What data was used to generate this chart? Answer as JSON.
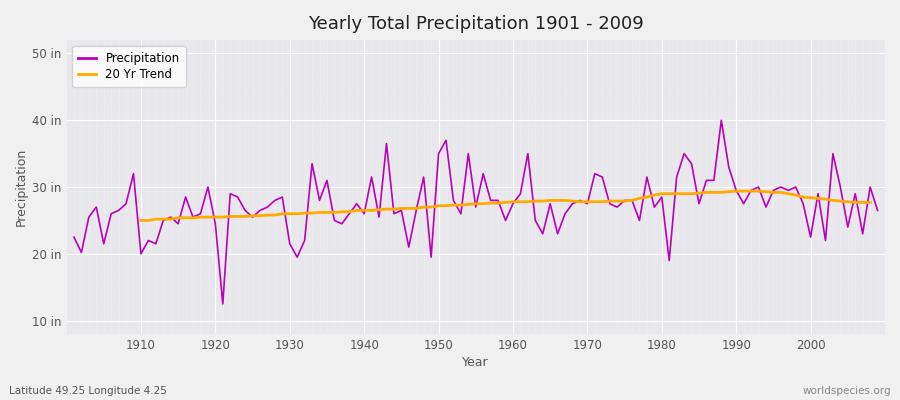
{
  "title": "Yearly Total Precipitation 1901 - 2009",
  "xlabel": "Year",
  "ylabel": "Precipitation",
  "subtitle": "Latitude 49.25 Longitude 4.25",
  "watermark": "worldspecies.org",
  "ylim": [
    8,
    52
  ],
  "yticks": [
    10,
    20,
    30,
    40,
    50
  ],
  "ytick_labels": [
    "10 in",
    "20 in",
    "30 in",
    "40 in",
    "50 in"
  ],
  "xlim": [
    1900,
    2010
  ],
  "fig_bg_color": "#f0f0f0",
  "plot_bg_color": "#e8e8ec",
  "precip_color": "#bb00bb",
  "trend_color": "#ffaa00",
  "legend_entries": [
    "Precipitation",
    "20 Yr Trend"
  ],
  "years": [
    1901,
    1902,
    1903,
    1904,
    1905,
    1906,
    1907,
    1908,
    1909,
    1910,
    1911,
    1912,
    1913,
    1914,
    1915,
    1916,
    1917,
    1918,
    1919,
    1920,
    1921,
    1922,
    1923,
    1924,
    1925,
    1926,
    1927,
    1928,
    1929,
    1930,
    1931,
    1932,
    1933,
    1934,
    1935,
    1936,
    1937,
    1938,
    1939,
    1940,
    1941,
    1942,
    1943,
    1944,
    1945,
    1946,
    1947,
    1948,
    1949,
    1950,
    1951,
    1952,
    1953,
    1954,
    1955,
    1956,
    1957,
    1958,
    1959,
    1960,
    1961,
    1962,
    1963,
    1964,
    1965,
    1966,
    1967,
    1968,
    1969,
    1970,
    1971,
    1972,
    1973,
    1974,
    1975,
    1976,
    1977,
    1978,
    1979,
    1980,
    1981,
    1982,
    1983,
    1984,
    1985,
    1986,
    1987,
    1988,
    1989,
    1990,
    1991,
    1992,
    1993,
    1994,
    1995,
    1996,
    1997,
    1998,
    1999,
    2000,
    2001,
    2002,
    2003,
    2004,
    2005,
    2006,
    2007,
    2008,
    2009
  ],
  "precip": [
    22.5,
    20.2,
    25.5,
    27.0,
    21.5,
    26.0,
    26.5,
    27.5,
    32.0,
    20.0,
    22.0,
    21.5,
    25.0,
    25.5,
    24.5,
    28.5,
    25.5,
    26.0,
    30.0,
    24.5,
    12.5,
    29.0,
    28.5,
    26.5,
    25.5,
    26.5,
    27.0,
    28.0,
    28.5,
    21.5,
    19.5,
    22.0,
    33.5,
    28.0,
    31.0,
    25.0,
    24.5,
    26.0,
    27.5,
    26.0,
    31.5,
    25.5,
    36.5,
    26.0,
    26.5,
    21.0,
    26.5,
    31.5,
    19.5,
    35.0,
    37.0,
    28.0,
    26.0,
    35.0,
    27.0,
    32.0,
    28.0,
    28.0,
    25.0,
    27.5,
    29.0,
    35.0,
    25.0,
    23.0,
    27.5,
    23.0,
    26.0,
    27.5,
    28.0,
    27.5,
    32.0,
    31.5,
    27.5,
    27.0,
    28.0,
    28.0,
    25.0,
    31.5,
    27.0,
    28.5,
    19.0,
    31.5,
    35.0,
    33.5,
    27.5,
    31.0,
    31.0,
    40.0,
    33.0,
    29.5,
    27.5,
    29.5,
    30.0,
    27.0,
    29.5,
    30.0,
    29.5,
    30.0,
    27.5,
    22.5,
    29.0,
    22.0,
    35.0,
    30.0,
    24.0,
    29.0,
    23.0,
    30.0,
    26.5
  ],
  "trend": [
    null,
    null,
    null,
    null,
    null,
    null,
    null,
    null,
    null,
    25.0,
    25.0,
    25.2,
    25.2,
    25.2,
    25.4,
    25.4,
    25.4,
    25.5,
    25.5,
    25.5,
    25.5,
    25.6,
    25.6,
    25.6,
    25.7,
    25.7,
    25.8,
    25.8,
    26.0,
    26.0,
    26.0,
    26.1,
    26.1,
    26.2,
    26.2,
    26.2,
    26.3,
    26.3,
    26.5,
    26.5,
    26.5,
    26.6,
    26.7,
    26.7,
    26.8,
    26.8,
    26.8,
    27.0,
    27.0,
    27.2,
    27.2,
    27.3,
    27.3,
    27.4,
    27.5,
    27.5,
    27.6,
    27.6,
    27.7,
    27.8,
    27.8,
    27.8,
    27.9,
    27.9,
    28.0,
    28.0,
    28.0,
    27.9,
    27.8,
    27.8,
    27.8,
    27.8,
    27.9,
    27.9,
    27.9,
    28.0,
    28.3,
    28.5,
    28.8,
    29.0,
    29.0,
    29.0,
    29.0,
    29.0,
    29.1,
    29.2,
    29.2,
    29.2,
    29.3,
    29.4,
    29.4,
    29.4,
    29.4,
    29.3,
    29.2,
    29.2,
    29.0,
    28.8,
    28.5,
    28.4,
    28.3,
    28.2,
    28.0,
    27.9,
    27.8,
    27.7,
    27.7,
    27.7,
    null
  ]
}
